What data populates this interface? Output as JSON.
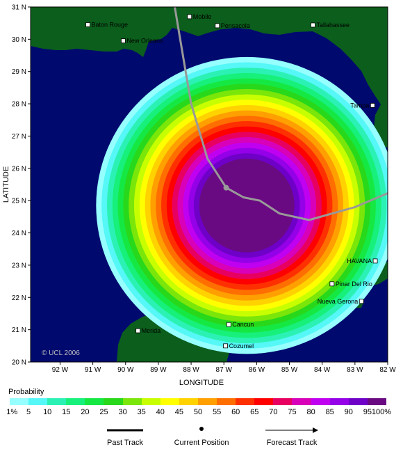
{
  "axes": {
    "xlabel": "LONGITUDE",
    "ylabel": "LATITUDE",
    "lat_ticks": [
      "31 N",
      "30 N",
      "29 N",
      "28 N",
      "27 N",
      "26 N",
      "25 N",
      "24 N",
      "23 N",
      "22 N",
      "21 N",
      "20 N"
    ],
    "lon_ticks": [
      "92 W",
      "91 W",
      "90 W",
      "89 W",
      "88 W",
      "87 W",
      "86 W",
      "85 W",
      "84 W",
      "83 W",
      "82 W"
    ]
  },
  "credit": "© UCL 2006",
  "colors": {
    "ocean": "#000a6e",
    "land": "#0b5e1c",
    "track": "#999999"
  },
  "cities": [
    {
      "name": "Baton Rouge",
      "lon": -91.15,
      "lat": 30.45
    },
    {
      "name": "Mobile",
      "lon": -88.05,
      "lat": 30.7
    },
    {
      "name": "Pensacola",
      "lon": -87.2,
      "lat": 30.42
    },
    {
      "name": "Tallahassee",
      "lon": -84.28,
      "lat": 30.44
    },
    {
      "name": "New Orleans",
      "lon": -90.07,
      "lat": 29.95
    },
    {
      "name": "Tampa",
      "lon": -82.46,
      "lat": 27.95
    },
    {
      "name": "HAVANA",
      "lon": -82.38,
      "lat": 23.13
    },
    {
      "name": "Pinar Del Rio",
      "lon": -83.7,
      "lat": 22.42
    },
    {
      "name": "Nueva Gerona",
      "lon": -82.8,
      "lat": 21.88
    },
    {
      "name": "Merida",
      "lon": -89.62,
      "lat": 20.97
    },
    {
      "name": "Cancun",
      "lon": -86.85,
      "lat": 21.16
    },
    {
      "name": "Cozumel",
      "lon": -86.95,
      "lat": 20.5
    }
  ],
  "track": [
    [
      -88.5,
      31.0
    ],
    [
      -88.2,
      29.2
    ],
    [
      -88.0,
      28.0
    ],
    [
      -87.5,
      26.3
    ],
    [
      -86.93,
      25.4
    ],
    [
      -86.4,
      25.1
    ],
    [
      -85.9,
      25.0
    ],
    [
      -85.3,
      24.6
    ],
    [
      -84.4,
      24.4
    ],
    [
      -83.0,
      24.8
    ],
    [
      -82.3,
      25.1
    ],
    [
      -81.6,
      25.4
    ]
  ],
  "current_position": {
    "lon": -86.93,
    "lat": 25.4
  },
  "probability_field": {
    "center": {
      "lon": -86.3,
      "lat": 24.85
    },
    "outer_radius_deg": 4.6,
    "levels": [
      1,
      5,
      10,
      15,
      20,
      25,
      30,
      35,
      40,
      45,
      50,
      55,
      60,
      65,
      70,
      75,
      80,
      85,
      90,
      95
    ],
    "colors": [
      "#96ffff",
      "#55f7f7",
      "#2bf2b4",
      "#17f07a",
      "#16e843",
      "#28d81a",
      "#7ae60a",
      "#c8ff00",
      "#ffff00",
      "#ffd200",
      "#ff9f00",
      "#ff6e00",
      "#ff3000",
      "#ff0000",
      "#e80060",
      "#d800b8",
      "#c000f0",
      "#9400e8",
      "#6e00c8",
      "#6a0a82"
    ]
  },
  "legend": {
    "title": "Probability",
    "labels": [
      "1%",
      "5",
      "10",
      "15",
      "20",
      "25",
      "30",
      "35",
      "40",
      "45",
      "50",
      "55",
      "60",
      "65",
      "70",
      "75",
      "80",
      "85",
      "90",
      "95",
      "100%"
    ],
    "past_track": "Past Track",
    "current_position": "Current Position",
    "forecast_track": "Forecast Track"
  }
}
